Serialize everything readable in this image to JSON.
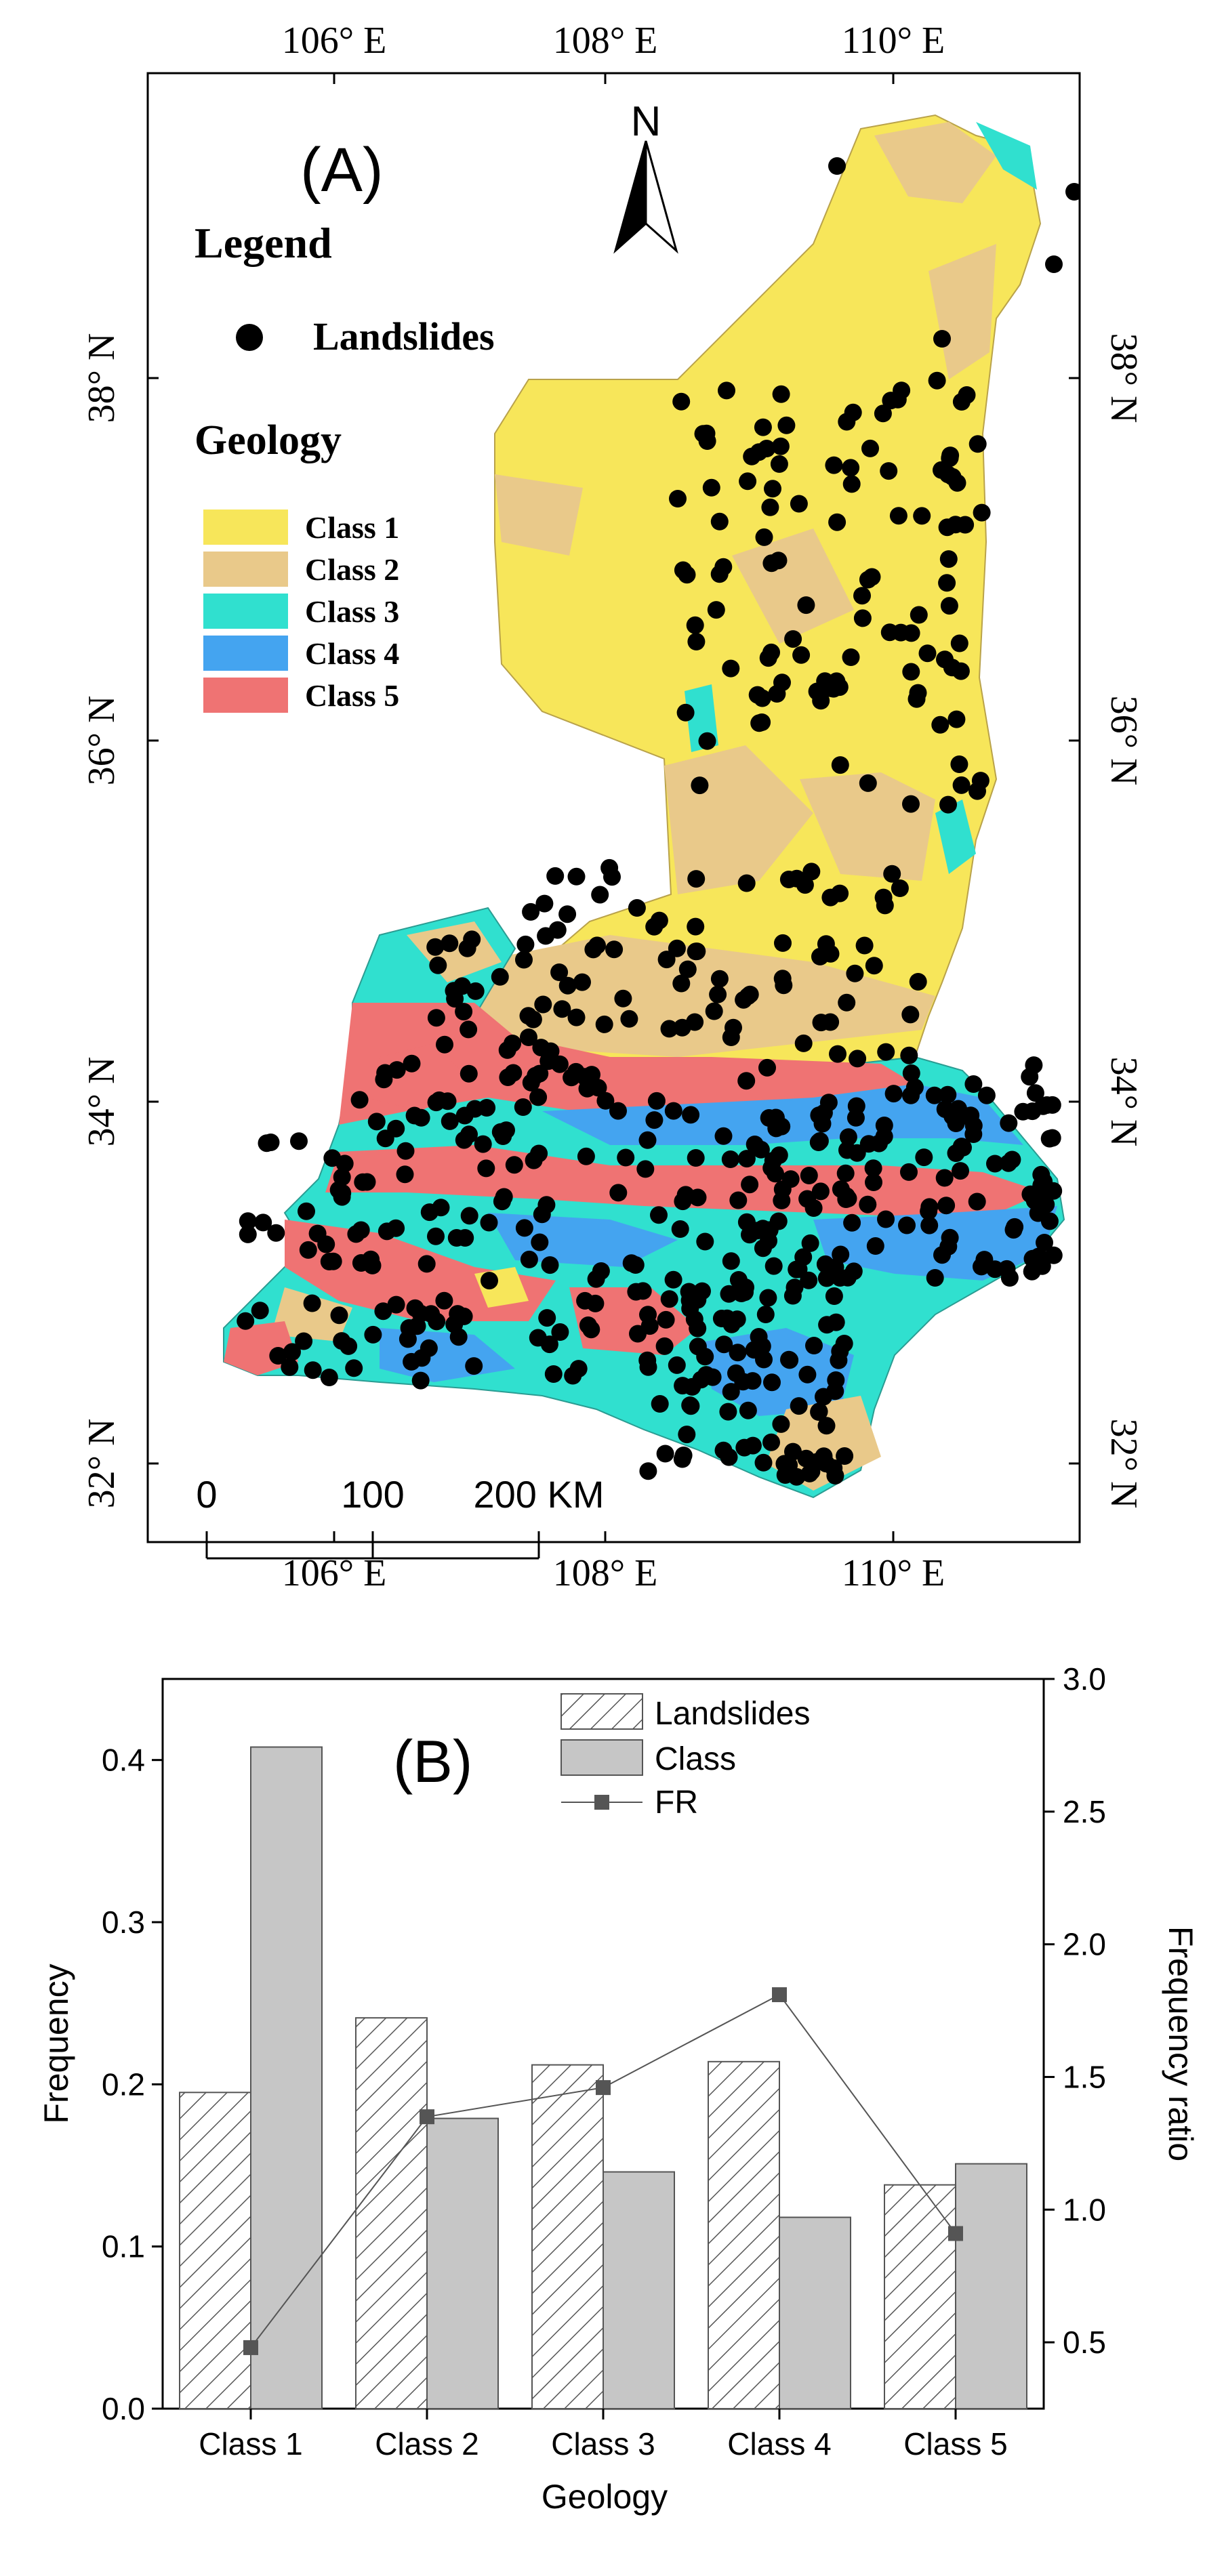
{
  "panel_a": {
    "label": "(A)",
    "north": "N",
    "legend_title": "Legend",
    "landslides_label": "Landslides",
    "geology_title": "Geology",
    "classes": [
      {
        "label": "Class  1",
        "color": "#f7e65a"
      },
      {
        "label": "Class  2",
        "color": "#e9c98a"
      },
      {
        "label": "Class  3",
        "color": "#30e0cf"
      },
      {
        "label": "Class  4",
        "color": "#44a4f0"
      },
      {
        "label": "Class  5",
        "color": "#ef7373"
      }
    ],
    "lon_ticks": [
      "106° E",
      "108° E",
      "110° E"
    ],
    "lat_ticks": [
      "38° N",
      "36° N",
      "34° N",
      "32° N"
    ],
    "scalebar": {
      "labels": [
        "0",
        "100",
        "200 KM"
      ]
    }
  },
  "chart_data": {
    "type": "bar",
    "panel_label": "(B)",
    "categories": [
      "Class 1",
      "Class 2",
      "Class 3",
      "Class 4",
      "Class 5"
    ],
    "series": [
      {
        "name": "Landslides",
        "values": [
          0.195,
          0.241,
          0.212,
          0.214,
          0.138
        ],
        "style": "hatched",
        "axis": "left"
      },
      {
        "name": "Class",
        "values": [
          0.408,
          0.179,
          0.146,
          0.118,
          0.151
        ],
        "style": "gray",
        "axis": "left"
      },
      {
        "name": "FR",
        "values": [
          0.48,
          1.35,
          1.46,
          1.81,
          0.91
        ],
        "style": "line-square",
        "axis": "right"
      }
    ],
    "xlabel": "Geology",
    "ylabel": "Frequency",
    "y2label": "Frequency ratio",
    "ylim": [
      0,
      0.45
    ],
    "y2lim": [
      0.25,
      3.0
    ],
    "yticks": [
      "0.0",
      "0.1",
      "0.2",
      "0.3",
      "0.4"
    ],
    "y2ticks": [
      "0.5",
      "1.0",
      "1.5",
      "2.0",
      "2.5",
      "3.0"
    ],
    "legend_position": "top-center",
    "colors": {
      "bar_gray": "#c6c6c6",
      "line": "#555555",
      "marker": "#555555"
    }
  }
}
